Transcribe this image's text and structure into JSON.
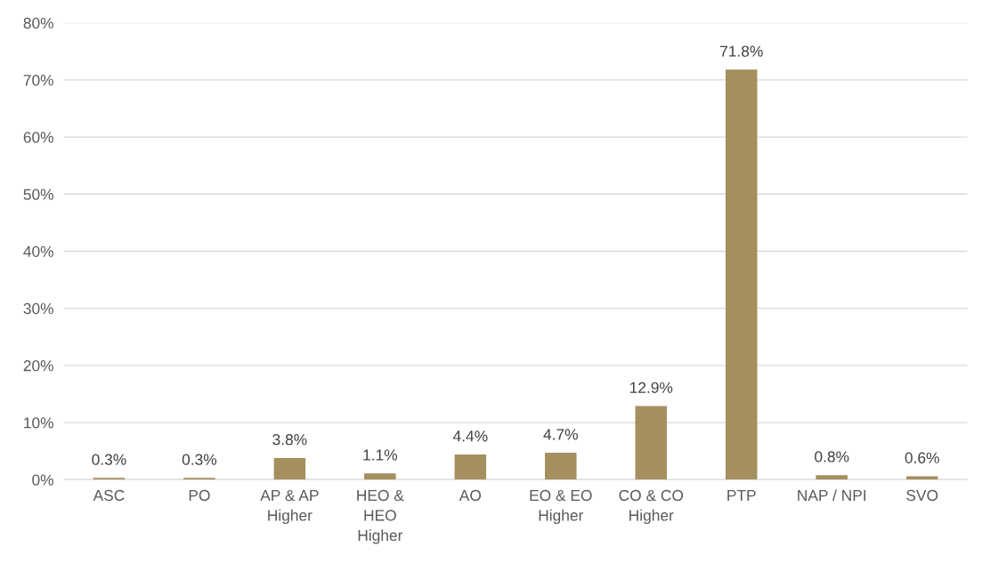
{
  "chart_data": {
    "type": "bar",
    "categories": [
      "ASC",
      "PO",
      "AP & AP\nHigher",
      "HEO &\nHEO\nHigher",
      "AO",
      "EO & EO\nHigher",
      "CO & CO\nHigher",
      "PTP",
      "NAP / NPI",
      "SVO"
    ],
    "values": [
      0.3,
      0.3,
      3.8,
      1.1,
      4.4,
      4.7,
      12.9,
      71.8,
      0.8,
      0.6
    ],
    "value_labels": [
      "0.3%",
      "0.3%",
      "3.8%",
      "1.1%",
      "4.4%",
      "4.7%",
      "12.9%",
      "71.8%",
      "0.8%",
      "0.6%"
    ],
    "color": "#a58f5e",
    "ylim": [
      0,
      80
    ],
    "yticks": [
      {
        "value": 0,
        "label": "0%"
      },
      {
        "value": 10,
        "label": "10%"
      },
      {
        "value": 20,
        "label": "20%"
      },
      {
        "value": 30,
        "label": "30%"
      },
      {
        "value": 40,
        "label": "40%"
      },
      {
        "value": 50,
        "label": "50%"
      },
      {
        "value": 60,
        "label": "60%"
      },
      {
        "value": 70,
        "label": "70%"
      },
      {
        "value": 80,
        "label": "80%"
      }
    ],
    "grid": "y",
    "legend": false
  }
}
